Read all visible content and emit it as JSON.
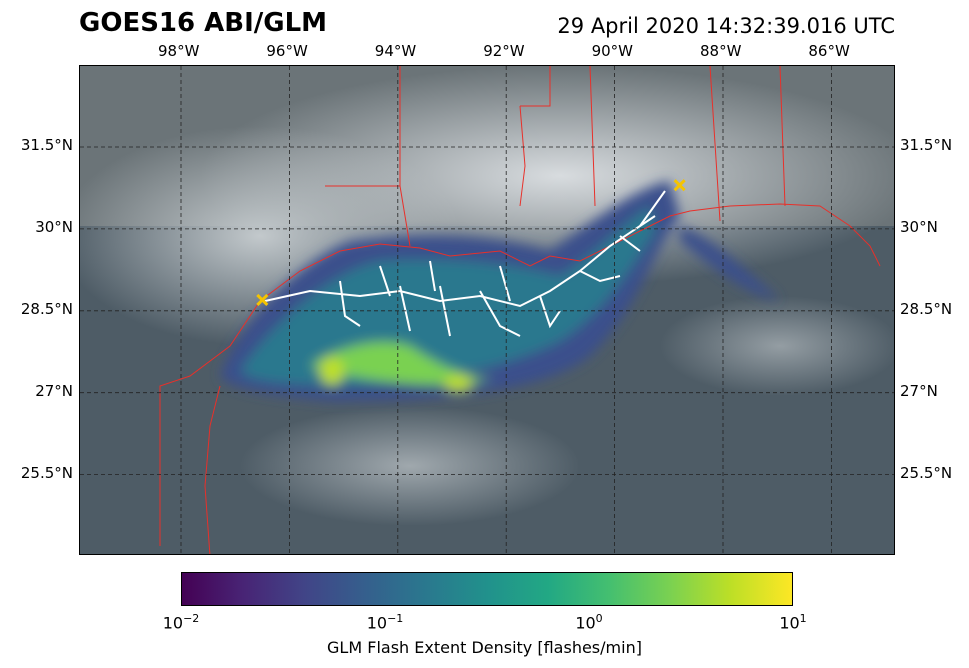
{
  "title": "GOES16 ABI/GLM",
  "timestamp": "29 April 2020 14:32:39.016 UTC",
  "map": {
    "lon_ticks": [
      {
        "value": -98,
        "label": "98°W"
      },
      {
        "value": -96,
        "label": "96°W"
      },
      {
        "value": -94,
        "label": "94°W"
      },
      {
        "value": -92,
        "label": "92°W"
      },
      {
        "value": -90,
        "label": "90°W"
      },
      {
        "value": -88,
        "label": "88°W"
      },
      {
        "value": -86,
        "label": "86°W"
      }
    ],
    "lat_ticks": [
      {
        "value": 31.5,
        "label": "31.5°N"
      },
      {
        "value": 30,
        "label": "30°N"
      },
      {
        "value": 28.5,
        "label": "28.5°N"
      },
      {
        "value": 27,
        "label": "27°N"
      },
      {
        "value": 25.5,
        "label": "25.5°N"
      }
    ],
    "gridlines": true,
    "border_color": "#e8302a",
    "flash_path_color": "#ffffff",
    "markers": [
      {
        "icon": "x-marker-icon",
        "lon": -96.5,
        "lat": 28.7,
        "color": "#f5c400"
      },
      {
        "icon": "x-marker-icon",
        "lon": -88.8,
        "lat": 30.8,
        "color": "#f5c400"
      }
    ]
  },
  "colorbar": {
    "colormap": "viridis",
    "scale": "log",
    "range": [
      0.01,
      10
    ],
    "ticks": [
      {
        "base": "10",
        "exp": "−2"
      },
      {
        "base": "10",
        "exp": "−1"
      },
      {
        "base": "10",
        "exp": "0"
      },
      {
        "base": "10",
        "exp": "1"
      }
    ],
    "label": "GLM Flash Extent Density [flashes/min]"
  }
}
